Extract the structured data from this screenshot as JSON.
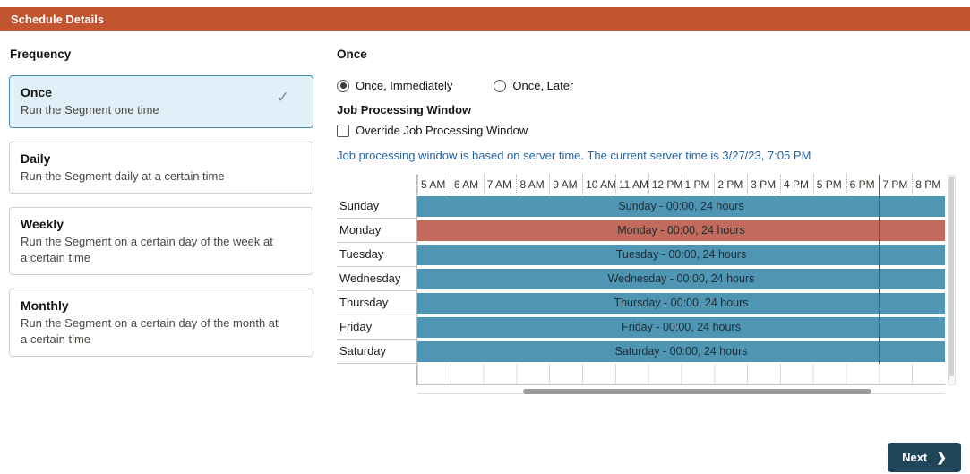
{
  "header": {
    "title": "Schedule Details"
  },
  "frequency": {
    "label": "Frequency",
    "options": [
      {
        "title": "Once",
        "description": "Run the Segment one time",
        "selected": true
      },
      {
        "title": "Daily",
        "description": "Run the Segment daily at a certain time",
        "selected": false
      },
      {
        "title": "Weekly",
        "description": "Run the Segment on a certain day of the week at a certain time",
        "selected": false
      },
      {
        "title": "Monthly",
        "description": "Run the Segment on a certain day of the month at a certain time",
        "selected": false
      }
    ],
    "check_icon": "✓"
  },
  "once_panel": {
    "title": "Once",
    "radio_options": [
      {
        "label": "Once, Immediately",
        "selected": true
      },
      {
        "label": "Once, Later",
        "selected": false
      }
    ],
    "job_window": {
      "title": "Job Processing Window",
      "override_label": "Override Job Processing Window",
      "override_checked": false,
      "info_text": "Job processing window is based on server time. The current server time is 3/27/23, 7:05 PM"
    }
  },
  "chart_data": {
    "type": "gantt",
    "title": "Job Processing Window schedule",
    "time_labels": [
      "5 AM",
      "6 AM",
      "7 AM",
      "8 AM",
      "9 AM",
      "10 AM",
      "11 AM",
      "12 PM",
      "1 PM",
      "2 PM",
      "3 PM",
      "4 PM",
      "5 PM",
      "6 PM",
      "7 PM",
      "8 PM"
    ],
    "rows": [
      {
        "day": "Sunday",
        "bar_label": "Sunday - 00:00, 24 hours",
        "start": "00:00",
        "duration_hours": 24,
        "color": "#4f96b4"
      },
      {
        "day": "Monday",
        "bar_label": "Monday - 00:00, 24 hours",
        "start": "00:00",
        "duration_hours": 24,
        "color": "#c26a5c"
      },
      {
        "day": "Tuesday",
        "bar_label": "Tuesday - 00:00, 24 hours",
        "start": "00:00",
        "duration_hours": 24,
        "color": "#4f96b4"
      },
      {
        "day": "Wednesday",
        "bar_label": "Wednesday - 00:00, 24 hours",
        "start": "00:00",
        "duration_hours": 24,
        "color": "#4f96b4"
      },
      {
        "day": "Thursday",
        "bar_label": "Thursday - 00:00, 24 hours",
        "start": "00:00",
        "duration_hours": 24,
        "color": "#4f96b4"
      },
      {
        "day": "Friday",
        "bar_label": "Friday - 00:00, 24 hours",
        "start": "00:00",
        "duration_hours": 24,
        "color": "#4f96b4"
      },
      {
        "day": "Saturday",
        "bar_label": "Saturday - 00:00, 24 hours",
        "start": "00:00",
        "duration_hours": 24,
        "color": "#4f96b4"
      }
    ],
    "current_time": "7:05 PM",
    "current_time_pct": 87.4,
    "bar_color_default": "#4f96b4",
    "bar_color_highlight": "#c26a5c"
  },
  "footer": {
    "next_label": "Next",
    "next_chevron": "❯"
  }
}
